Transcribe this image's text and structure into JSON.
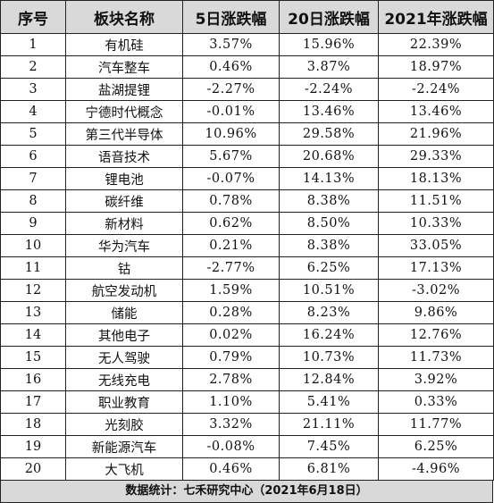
{
  "table": {
    "headers": [
      "序号",
      "板块名称",
      "5日涨跌幅",
      "20日涨跌幅",
      "2021年涨跌幅"
    ],
    "rows": [
      {
        "idx": "1",
        "name": "有机硅",
        "d5": "3.57%",
        "d20": "15.96%",
        "ytd": "22.39%"
      },
      {
        "idx": "2",
        "name": "汽车整车",
        "d5": "0.46%",
        "d20": "3.87%",
        "ytd": "18.97%"
      },
      {
        "idx": "3",
        "name": "盐湖提锂",
        "d5": "-2.27%",
        "d20": "-2.24%",
        "ytd": "-2.24%"
      },
      {
        "idx": "4",
        "name": "宁德时代概念",
        "d5": "-0.01%",
        "d20": "13.46%",
        "ytd": "13.46%"
      },
      {
        "idx": "5",
        "name": "第三代半导体",
        "d5": "10.96%",
        "d20": "29.58%",
        "ytd": "21.96%"
      },
      {
        "idx": "6",
        "name": "语音技术",
        "d5": "5.67%",
        "d20": "20.68%",
        "ytd": "29.33%"
      },
      {
        "idx": "7",
        "name": "锂电池",
        "d5": "-0.07%",
        "d20": "14.13%",
        "ytd": "18.13%"
      },
      {
        "idx": "8",
        "name": "碳纤维",
        "d5": "0.78%",
        "d20": "8.38%",
        "ytd": "11.51%"
      },
      {
        "idx": "9",
        "name": "新材料",
        "d5": "0.62%",
        "d20": "8.50%",
        "ytd": "10.33%"
      },
      {
        "idx": "10",
        "name": "华为汽车",
        "d5": "0.21%",
        "d20": "8.38%",
        "ytd": "33.05%"
      },
      {
        "idx": "11",
        "name": "钴",
        "d5": "-2.77%",
        "d20": "6.25%",
        "ytd": "17.13%"
      },
      {
        "idx": "12",
        "name": "航空发动机",
        "d5": "1.59%",
        "d20": "10.51%",
        "ytd": "-3.02%"
      },
      {
        "idx": "13",
        "name": "储能",
        "d5": "0.28%",
        "d20": "8.23%",
        "ytd": "9.86%"
      },
      {
        "idx": "14",
        "name": "其他电子",
        "d5": "0.02%",
        "d20": "16.24%",
        "ytd": "12.76%"
      },
      {
        "idx": "15",
        "name": "无人驾驶",
        "d5": "0.79%",
        "d20": "10.73%",
        "ytd": "11.73%"
      },
      {
        "idx": "16",
        "name": "无线充电",
        "d5": "2.78%",
        "d20": "12.84%",
        "ytd": "3.92%"
      },
      {
        "idx": "17",
        "name": "职业教育",
        "d5": "1.10%",
        "d20": "5.41%",
        "ytd": "0.33%"
      },
      {
        "idx": "18",
        "name": "光刻胶",
        "d5": "3.32%",
        "d20": "21.11%",
        "ytd": "11.77%"
      },
      {
        "idx": "19",
        "name": "新能源汽车",
        "d5": "-0.08%",
        "d20": "7.45%",
        "ytd": "6.25%"
      },
      {
        "idx": "20",
        "name": "大飞机",
        "d5": "0.46%",
        "d20": "6.81%",
        "ytd": "-4.96%"
      }
    ]
  },
  "footer": {
    "text": "数据统计：七禾研究中心（2021年6月18日）"
  },
  "colors": {
    "header_bg": "#d9d9d9",
    "border": "#222222"
  }
}
